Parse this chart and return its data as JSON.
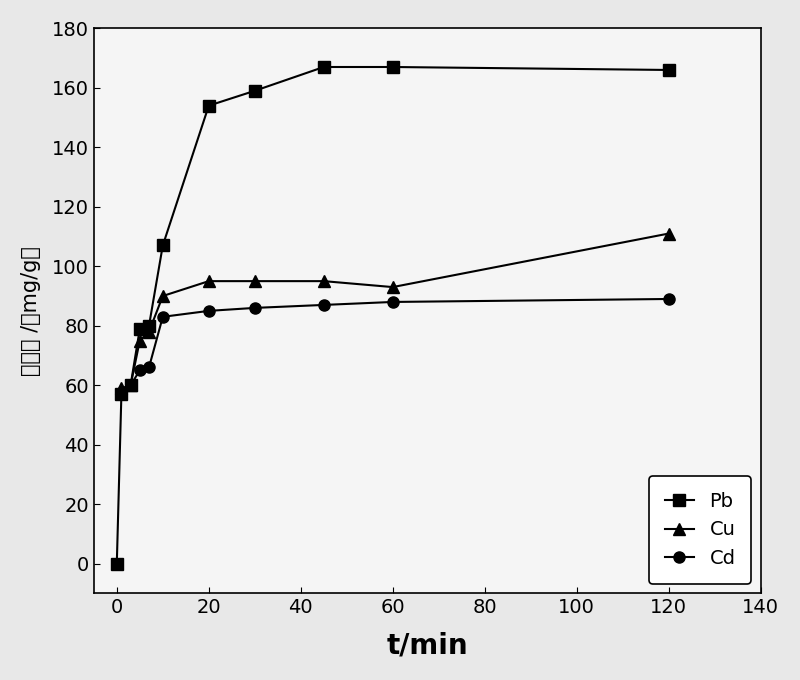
{
  "Pb_x": [
    0,
    1,
    3,
    5,
    7,
    10,
    20,
    30,
    45,
    60,
    120
  ],
  "Pb_y": [
    0,
    57,
    60,
    79,
    80,
    107,
    154,
    159,
    167,
    167,
    166
  ],
  "Cu_x": [
    1,
    3,
    5,
    7,
    10,
    20,
    30,
    45,
    60,
    120
  ],
  "Cu_y": [
    59,
    60,
    75,
    78,
    90,
    95,
    95,
    95,
    93,
    111
  ],
  "Cd_x": [
    1,
    3,
    5,
    7,
    10,
    20,
    30,
    45,
    60,
    120
  ],
  "Cd_y": [
    57,
    60,
    65,
    66,
    83,
    85,
    86,
    87,
    88,
    89
  ],
  "xlabel": "t/min",
  "ylabel": "吸附量 /（mg/g）",
  "xlim": [
    -5,
    140
  ],
  "ylim": [
    -10,
    180
  ],
  "xticks": [
    0,
    20,
    40,
    60,
    80,
    100,
    120,
    140
  ],
  "yticks": [
    0,
    20,
    40,
    60,
    80,
    100,
    120,
    140,
    160,
    180
  ],
  "legend_labels": [
    "Pb",
    "Cu",
    "Cd"
  ],
  "line_color": "#000000",
  "marker_Pb": "s",
  "marker_Cu": "^",
  "marker_Cd": "o",
  "markersize": 8,
  "linewidth": 1.5,
  "background_color": "#e8e8e8",
  "plot_bg_color": "#f5f5f5",
  "xlabel_fontsize": 20,
  "ylabel_fontsize": 15,
  "tick_fontsize": 14,
  "legend_fontsize": 14
}
